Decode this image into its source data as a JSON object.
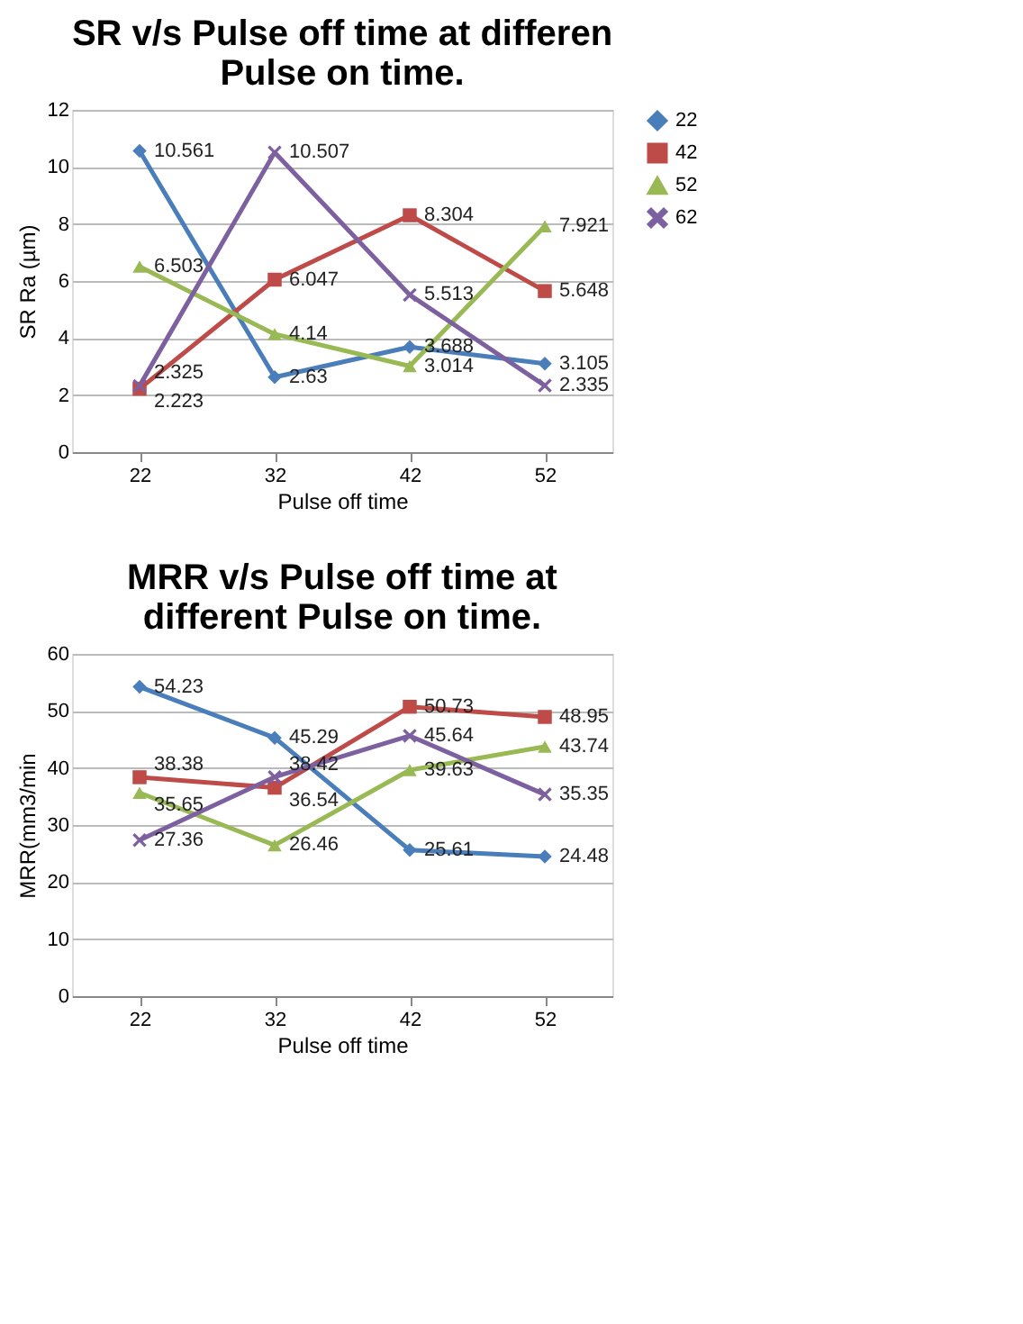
{
  "chart_data": [
    {
      "type": "line",
      "title": "SR v/s Pulse off time at differen Pulse on time.",
      "xlabel": "Pulse off time",
      "ylabel": "SR Ra (µm)",
      "categories": [
        "22",
        "32",
        "42",
        "52"
      ],
      "ylim": [
        0,
        12
      ],
      "yticks": [
        0,
        2,
        4,
        6,
        8,
        10,
        12
      ],
      "grid": "y",
      "legend": "right",
      "data_labels": true,
      "series": [
        {
          "name": "22",
          "color": "#4a7ebb",
          "marker": "diamond",
          "values": [
            10.561,
            2.63,
            3.688,
            3.105
          ]
        },
        {
          "name": "42",
          "color": "#be4b48",
          "marker": "square",
          "values": [
            2.223,
            6.047,
            8.304,
            5.648
          ]
        },
        {
          "name": "52",
          "color": "#98b954",
          "marker": "triangle",
          "values": [
            6.503,
            4.14,
            3.014,
            7.921
          ]
        },
        {
          "name": "62",
          "color": "#7d60a0",
          "marker": "cross",
          "values": [
            2.325,
            10.507,
            5.513,
            2.335
          ]
        }
      ]
    },
    {
      "type": "line",
      "title": "MRR v/s Pulse off time at different Pulse on time.",
      "xlabel": "Pulse off time",
      "ylabel": "MRR(mm3/min",
      "categories": [
        "22",
        "32",
        "42",
        "52"
      ],
      "ylim": [
        0,
        60
      ],
      "yticks": [
        0,
        10,
        20,
        30,
        40,
        50,
        60
      ],
      "grid": "y",
      "legend": "right",
      "data_labels": true,
      "series": [
        {
          "name": "22",
          "color": "#4a7ebb",
          "marker": "diamond",
          "values": [
            54.23,
            45.29,
            25.61,
            24.48
          ]
        },
        {
          "name": "42",
          "color": "#be4b48",
          "marker": "square",
          "values": [
            38.38,
            36.54,
            50.73,
            48.95
          ]
        },
        {
          "name": "52",
          "color": "#98b954",
          "marker": "triangle",
          "values": [
            35.65,
            26.46,
            39.63,
            43.74
          ]
        },
        {
          "name": "62",
          "color": "#7d60a0",
          "marker": "cross",
          "values": [
            27.36,
            38.42,
            45.64,
            35.35
          ]
        }
      ]
    }
  ]
}
